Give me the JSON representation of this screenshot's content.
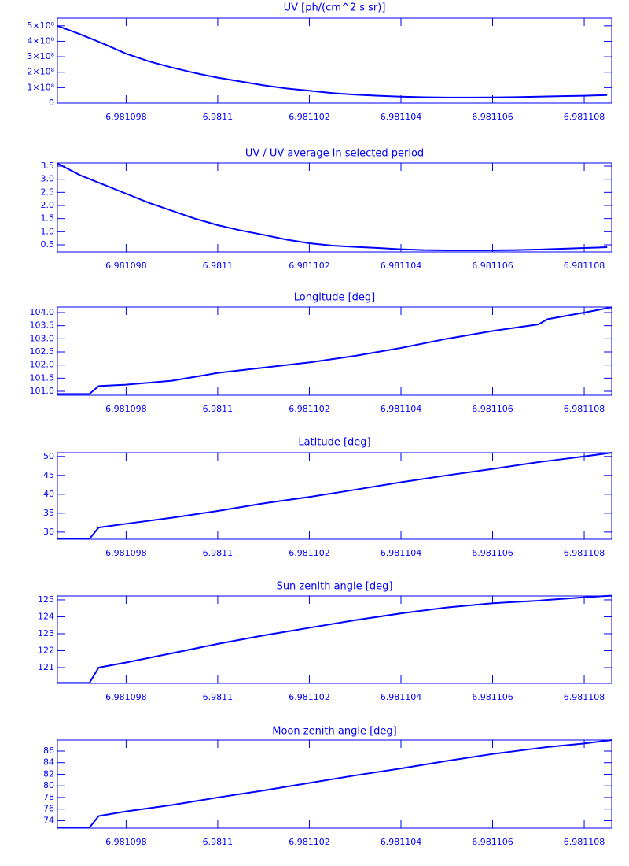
{
  "chart_data": [
    {
      "type": "line",
      "title": "UV [ph/(cm^2 s sr)]",
      "color": "#0000ff",
      "x": [
        6.9810965,
        6.981097,
        6.9810975,
        6.981098,
        6.9810985,
        6.981099,
        6.9810995,
        6.9811,
        6.9811005,
        6.981101,
        6.9811015,
        6.981102,
        6.9811025,
        6.981103,
        6.9811035,
        6.981104,
        6.9811045,
        6.981105,
        6.9811055,
        6.981106,
        6.9811065,
        6.981107,
        6.9811075,
        6.981108,
        6.9811085
      ],
      "values": [
        500000000,
        445000000,
        385000000,
        320000000,
        270000000,
        230000000,
        195000000,
        165000000,
        140000000,
        115000000,
        95000000,
        80000000,
        65000000,
        55000000,
        48000000,
        42000000,
        38000000,
        36000000,
        36000000,
        37000000,
        39000000,
        42000000,
        45000000,
        48000000,
        52000000
      ],
      "xlim": [
        6.9810965,
        6.9811086
      ],
      "xticks": [
        6.981098,
        6.9811,
        6.981102,
        6.981104,
        6.981106,
        6.981108
      ],
      "ylim": [
        0,
        550000000
      ],
      "yticks": [
        {
          "value": 0,
          "label": "0"
        },
        {
          "value": 100000000,
          "label": "1×10⁸"
        },
        {
          "value": 200000000,
          "label": "2×10⁸"
        },
        {
          "value": 300000000,
          "label": "3×10⁸"
        },
        {
          "value": 400000000,
          "label": "4×10⁸"
        },
        {
          "value": 500000000,
          "label": "5×10⁸"
        }
      ]
    },
    {
      "type": "line",
      "title": "UV / UV average in selected period",
      "color": "#0000ff",
      "x": [
        6.9810965,
        6.981097,
        6.9810975,
        6.981098,
        6.9810985,
        6.981099,
        6.9810995,
        6.9811,
        6.9811005,
        6.981101,
        6.9811015,
        6.981102,
        6.9811025,
        6.981103,
        6.9811035,
        6.981104,
        6.9811045,
        6.981105,
        6.9811055,
        6.981106,
        6.9811065,
        6.981107,
        6.9811075,
        6.981108,
        6.9811085
      ],
      "values": [
        3.6,
        3.15,
        2.8,
        2.45,
        2.1,
        1.8,
        1.5,
        1.25,
        1.05,
        0.88,
        0.7,
        0.56,
        0.47,
        0.42,
        0.38,
        0.33,
        0.3,
        0.29,
        0.29,
        0.29,
        0.3,
        0.32,
        0.35,
        0.38,
        0.41
      ],
      "xlim": [
        6.9810965,
        6.9811086
      ],
      "xticks": [
        6.981098,
        6.9811,
        6.981102,
        6.981104,
        6.981106,
        6.981108
      ],
      "ylim": [
        0.23,
        3.62
      ],
      "yticks": [
        0.5,
        {
          "value": 1,
          "label": "1.0"
        },
        1.5,
        {
          "value": 2,
          "label": "2.0"
        },
        2.5,
        {
          "value": 3,
          "label": "3.0"
        },
        3.5
      ]
    },
    {
      "type": "line",
      "title": "Longitude [deg]",
      "color": "#0000ff",
      "x": [
        6.9810965,
        6.9810972,
        6.9810974,
        6.981098,
        6.981099,
        6.9811,
        6.981101,
        6.981102,
        6.981103,
        6.981104,
        6.981105,
        6.981106,
        6.981107,
        6.9811072,
        6.981108,
        6.9811086
      ],
      "values": [
        100.9,
        100.9,
        101.2,
        101.25,
        101.4,
        101.7,
        101.9,
        102.1,
        102.35,
        102.65,
        103.0,
        103.3,
        103.55,
        103.75,
        104.0,
        104.2
      ],
      "xlim": [
        6.9810965,
        6.9811086
      ],
      "xticks": [
        6.981098,
        6.9811,
        6.981102,
        6.981104,
        6.981106,
        6.981108
      ],
      "ylim": [
        100.85,
        104.21
      ],
      "yticks": [
        {
          "value": 101,
          "label": "101.0"
        },
        101.5,
        {
          "value": 102,
          "label": "102.0"
        },
        102.5,
        {
          "value": 103,
          "label": "103.0"
        },
        103.5,
        {
          "value": 104,
          "label": "104.0"
        }
      ]
    },
    {
      "type": "line",
      "title": "Latitude [deg]",
      "color": "#0000ff",
      "x": [
        6.9810965,
        6.9810972,
        6.9810974,
        6.981098,
        6.981099,
        6.9811,
        6.981101,
        6.981102,
        6.981103,
        6.981104,
        6.981105,
        6.981106,
        6.981107,
        6.9811072,
        6.981108,
        6.9811086
      ],
      "values": [
        28.2,
        28.2,
        31.2,
        32.2,
        33.8,
        35.6,
        37.6,
        39.3,
        41.2,
        43.2,
        45.0,
        46.7,
        48.5,
        48.8,
        50.0,
        51.0
      ],
      "xlim": [
        6.9810965,
        6.9811086
      ],
      "xticks": [
        6.981098,
        6.9811,
        6.981102,
        6.981104,
        6.981106,
        6.981108
      ],
      "ylim": [
        28.1,
        51.0
      ],
      "yticks": [
        30,
        35,
        40,
        45,
        50
      ]
    },
    {
      "type": "line",
      "title": "Sun zenith angle [deg]",
      "color": "#0000ff",
      "x": [
        6.9810965,
        6.9810972,
        6.9810974,
        6.981098,
        6.981099,
        6.9811,
        6.981101,
        6.981102,
        6.981103,
        6.981104,
        6.981105,
        6.981106,
        6.981107,
        6.9811072,
        6.981108,
        6.9811086
      ],
      "values": [
        120.1,
        120.1,
        121.0,
        121.3,
        121.85,
        122.4,
        122.9,
        123.35,
        123.8,
        124.2,
        124.55,
        124.8,
        124.95,
        125.0,
        125.15,
        125.25
      ],
      "xlim": [
        6.9810965,
        6.9811086
      ],
      "xticks": [
        6.981098,
        6.9811,
        6.981102,
        6.981104,
        6.981106,
        6.981108
      ],
      "ylim": [
        120.07,
        125.23
      ],
      "yticks": [
        121,
        122,
        123,
        124,
        125
      ]
    },
    {
      "type": "line",
      "title": "Moon zenith angle [deg]",
      "color": "#0000ff",
      "x": [
        6.9810965,
        6.9810972,
        6.9810974,
        6.981098,
        6.981099,
        6.9811,
        6.981101,
        6.981102,
        6.981103,
        6.981104,
        6.981105,
        6.981106,
        6.981107,
        6.9811072,
        6.981108,
        6.9811086
      ],
      "values": [
        72.8,
        72.8,
        74.8,
        75.6,
        76.7,
        78.0,
        79.2,
        80.5,
        81.8,
        83.0,
        84.3,
        85.5,
        86.5,
        86.7,
        87.3,
        87.9
      ],
      "xlim": [
        6.9810965,
        6.9811086
      ],
      "xticks": [
        6.981098,
        6.9811,
        6.981102,
        6.981104,
        6.981106,
        6.981108
      ],
      "ylim": [
        72.7,
        87.9
      ],
      "yticks": [
        74,
        76,
        78,
        80,
        82,
        84,
        86
      ]
    }
  ]
}
